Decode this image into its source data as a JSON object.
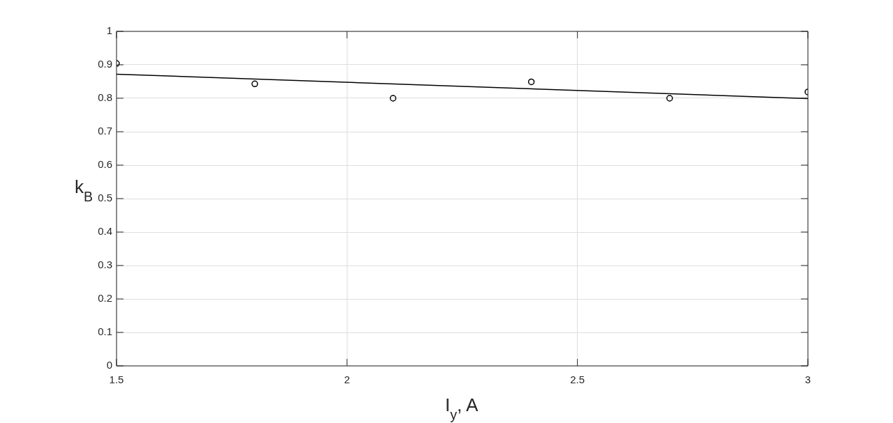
{
  "chart_data": {
    "type": "scatter",
    "xlabel": "I$_{y}$, A",
    "ylabel": "k$_{B}$",
    "xlim": [
      1.5,
      3
    ],
    "xticks": [
      1.5,
      2,
      2.5,
      3
    ],
    "ylim": [
      0,
      1
    ],
    "yticks": [
      0,
      0.1,
      0.2,
      0.3,
      0.4,
      0.5,
      0.6,
      0.7,
      0.8,
      0.9,
      1
    ],
    "grid": true,
    "series": [
      {
        "type": "scatter",
        "x": [
          1.5,
          1.8,
          2.1,
          2.4,
          2.7,
          3.0
        ],
        "values": [
          0.904,
          0.843,
          0.8,
          0.849,
          0.8,
          0.819
        ],
        "color": "#000000",
        "marker": "circle"
      },
      {
        "type": "line",
        "x": [
          1.5,
          3
        ],
        "values": [
          0.872,
          0.799
        ],
        "color": "#000000",
        "marker": "none",
        "line_style": "solid"
      }
    ]
  }
}
